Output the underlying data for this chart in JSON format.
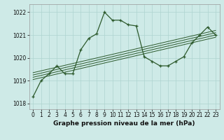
{
  "title": "Graphe pression niveau de la mer (hPa)",
  "bg_color": "#ceeae7",
  "grid_color": "#aed4d0",
  "line_color": "#2d5a2d",
  "xlim": [
    -0.5,
    23.5
  ],
  "ylim": [
    1017.75,
    1022.35
  ],
  "yticks": [
    1018,
    1019,
    1020,
    1021,
    1022
  ],
  "xticks": [
    0,
    1,
    2,
    3,
    4,
    5,
    6,
    7,
    8,
    9,
    10,
    11,
    12,
    13,
    14,
    15,
    16,
    17,
    18,
    19,
    20,
    21,
    22,
    23
  ],
  "main_x": [
    0,
    1,
    2,
    3,
    4,
    5,
    6,
    7,
    8,
    9,
    10,
    11,
    12,
    13,
    14,
    15,
    16,
    17,
    18,
    19,
    20,
    21,
    22,
    23
  ],
  "main_y": [
    1018.3,
    1019.0,
    1019.3,
    1019.65,
    1019.3,
    1019.3,
    1020.35,
    1020.85,
    1021.05,
    1022.0,
    1021.65,
    1021.65,
    1021.45,
    1021.4,
    1020.05,
    1019.85,
    1019.65,
    1019.65,
    1019.85,
    1020.05,
    1020.65,
    1021.0,
    1021.35,
    1021.0
  ],
  "trend_lines": [
    {
      "x0": 0,
      "y0": 1019.05,
      "x1": 23,
      "y1": 1020.9
    },
    {
      "x0": 0,
      "y0": 1019.15,
      "x1": 23,
      "y1": 1021.0
    },
    {
      "x0": 0,
      "y0": 1019.25,
      "x1": 23,
      "y1": 1021.1
    },
    {
      "x0": 0,
      "y0": 1019.35,
      "x1": 23,
      "y1": 1021.2
    }
  ],
  "tick_fontsize": 5.5,
  "label_fontsize": 6.5,
  "label_fontweight": "bold"
}
